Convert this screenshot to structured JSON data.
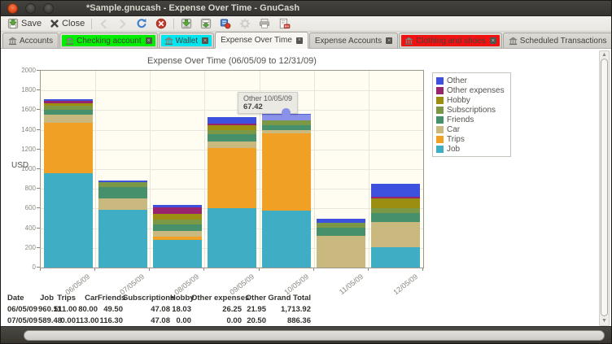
{
  "window": {
    "title": "*Sample.gnucash - Expense Over Time - GnuCash"
  },
  "toolbar": {
    "items": [
      {
        "name": "save-button",
        "icon": "save-icon",
        "label": "Save",
        "enabled": true
      },
      {
        "name": "close-button",
        "icon": "close-icon",
        "label": "Close",
        "enabled": true
      },
      {
        "type": "separator"
      },
      {
        "name": "back-button",
        "icon": "back-icon",
        "enabled": false
      },
      {
        "name": "forward-button",
        "icon": "forward-icon",
        "enabled": false
      },
      {
        "name": "reload-button",
        "icon": "reload-icon",
        "enabled": true
      },
      {
        "name": "stop-button",
        "icon": "stop-icon",
        "enabled": true
      },
      {
        "type": "separator"
      },
      {
        "name": "save-report-button",
        "icon": "save-report-icon",
        "enabled": true
      },
      {
        "name": "export-report-button",
        "icon": "export-report-icon",
        "enabled": true
      },
      {
        "name": "report-options-button",
        "icon": "options-icon",
        "enabled": true
      },
      {
        "name": "settings-button",
        "icon": "gear-icon",
        "enabled": false
      },
      {
        "name": "print-button",
        "icon": "print-icon",
        "enabled": true
      },
      {
        "name": "export-pdf-button",
        "icon": "export-pdf-icon",
        "enabled": true
      }
    ]
  },
  "tabs": [
    {
      "label": "Accounts",
      "icon": "bank-icon",
      "closable": false,
      "highlight": null,
      "active": false
    },
    {
      "label": "Checking account",
      "icon": "bank-icon",
      "closable": true,
      "highlight": "#00ee00",
      "active": false
    },
    {
      "label": "Wallet",
      "icon": "bank-icon",
      "closable": true,
      "highlight": "#00e6ee",
      "active": false
    },
    {
      "label": "Expense Over Time",
      "icon": null,
      "closable": true,
      "highlight": null,
      "active": true
    },
    {
      "label": "Expense Accounts",
      "icon": null,
      "closable": true,
      "highlight": null,
      "active": false
    },
    {
      "label": "Clothing and shoes",
      "icon": "bank-icon",
      "closable": true,
      "highlight": "#f21111",
      "active": false
    },
    {
      "label": "Scheduled Transactions",
      "icon": "bank-icon",
      "closable": true,
      "highlight": null,
      "active": false
    }
  ],
  "chart_data": {
    "type": "bar",
    "stacked": true,
    "title": "Expense Over Time (06/05/09 to 12/31/09)",
    "ylabel": "USD",
    "ylim": [
      0,
      2000
    ],
    "ytick_step": 200,
    "grid": true,
    "legend_position": "top-right",
    "categories": [
      "06/05/09",
      "07/05/09",
      "08/05/09",
      "09/05/09",
      "10/05/09",
      "11/05/09",
      "12/05/09"
    ],
    "series": [
      {
        "name": "Job",
        "color": "#3fadc4",
        "values": [
          960.11,
          589.48,
          280,
          605,
          575,
          0,
          205
        ]
      },
      {
        "name": "Trips",
        "color": "#f0a125",
        "values": [
          511.0,
          0,
          35,
          610,
          790,
          0,
          0
        ]
      },
      {
        "name": "Car",
        "color": "#c9b97e",
        "values": [
          80.0,
          113.0,
          60,
          70,
          35,
          320,
          255
        ]
      },
      {
        "name": "Friends",
        "color": "#46906c",
        "values": [
          49.5,
          116.3,
          62,
          68,
          50,
          85,
          95
        ]
      },
      {
        "name": "Subscriptions",
        "color": "#7a9845",
        "values": [
          47.08,
          47.08,
          47.08,
          47.08,
          47.08,
          47.08,
          47.08
        ]
      },
      {
        "name": "Hobby",
        "color": "#9c8e11",
        "values": [
          18.03,
          0,
          62,
          46,
          0,
          0,
          100
        ]
      },
      {
        "name": "Other expenses",
        "color": "#99246e",
        "values": [
          26.25,
          0,
          63,
          20,
          0,
          0,
          19
        ]
      },
      {
        "name": "Other",
        "color": "#3e50de",
        "values": [
          21.95,
          20.5,
          27,
          66,
          67.42,
          45,
          130
        ]
      }
    ],
    "legend_order_top_to_bottom": [
      "Other",
      "Other expenses",
      "Hobby",
      "Subscriptions",
      "Friends",
      "Car",
      "Trips",
      "Job"
    ],
    "highlight": {
      "series": "Other",
      "category_index": 4,
      "color": "#8a91e8"
    },
    "tooltip": {
      "text": "Other 10/05/09",
      "value": "67.42"
    }
  },
  "table": {
    "headers": [
      "Date",
      "Job",
      "Trips",
      "Car",
      "Friends",
      "Subscriptions",
      "Hobby",
      "Other expenses",
      "Other",
      "Grand Total"
    ],
    "rows": [
      [
        "06/05/09",
        "960.11",
        "511.00",
        "80.00",
        "49.50",
        "47.08",
        "18.03",
        "26.25",
        "21.95",
        "1,713.92"
      ],
      [
        "07/05/09",
        "589.48",
        "0.00",
        "113.00",
        "116.30",
        "47.08",
        "0.00",
        "0.00",
        "20.50",
        "886.36"
      ]
    ]
  }
}
